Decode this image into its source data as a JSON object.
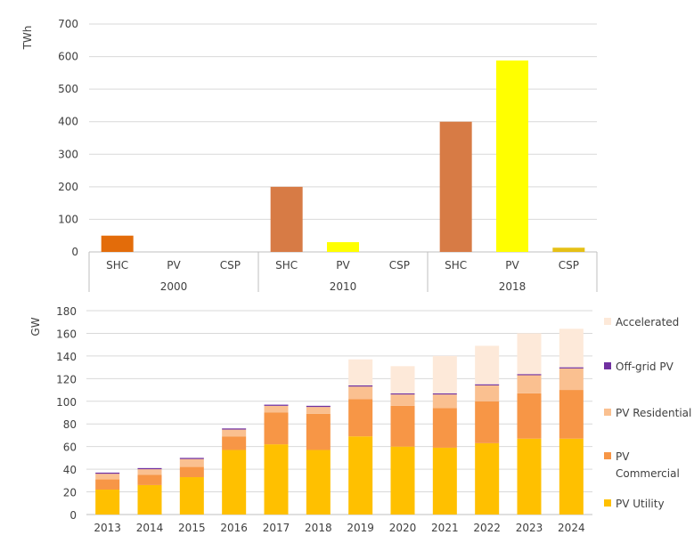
{
  "chart_data": [
    {
      "type": "bar",
      "title": "",
      "ylabel": "TWh",
      "xlabel": "",
      "ylim": [
        0,
        700
      ],
      "yticks": [
        0,
        100,
        200,
        300,
        400,
        500,
        600,
        700
      ],
      "grid": true,
      "groups": [
        {
          "label": "2000",
          "bars": [
            {
              "label": "SHC",
              "value": 50,
              "color": "#e36c0a"
            },
            {
              "label": "PV",
              "value": 0,
              "color": "#ffff00"
            },
            {
              "label": "CSP",
              "value": 0,
              "color": "#e5c016"
            }
          ]
        },
        {
          "label": "2010",
          "bars": [
            {
              "label": "SHC",
              "value": 200,
              "color": "#d77b45"
            },
            {
              "label": "PV",
              "value": 30,
              "color": "#ffff00"
            },
            {
              "label": "CSP",
              "value": 0,
              "color": "#e5c016"
            }
          ]
        },
        {
          "label": "2018",
          "bars": [
            {
              "label": "SHC",
              "value": 400,
              "color": "#d77b45"
            },
            {
              "label": "PV",
              "value": 588,
              "color": "#ffff00"
            },
            {
              "label": "CSP",
              "value": 13,
              "color": "#e5c016"
            }
          ]
        }
      ]
    },
    {
      "type": "stacked-bar",
      "title": "",
      "ylabel": "GW",
      "xlabel": "",
      "ylim": [
        0,
        180
      ],
      "yticks": [
        0,
        20,
        40,
        60,
        80,
        100,
        120,
        140,
        160,
        180
      ],
      "grid": true,
      "categories": [
        "2013",
        "2014",
        "2015",
        "2016",
        "2017",
        "2018",
        "2019",
        "2020",
        "2021",
        "2022",
        "2023",
        "2024"
      ],
      "series": [
        {
          "name": "PV Utility",
          "color": "#ffc000",
          "values": [
            22,
            26,
            33,
            57,
            62,
            57,
            69,
            60,
            59,
            63,
            67,
            67
          ]
        },
        {
          "name": "PV Commercial",
          "color": "#f79646",
          "values": [
            9,
            9,
            9,
            12,
            28,
            32,
            33,
            36,
            35,
            37,
            40,
            43
          ]
        },
        {
          "name": "PV Residential",
          "color": "#fac090",
          "values": [
            5,
            5,
            7,
            6,
            6,
            6,
            11,
            10,
            12,
            14,
            16,
            19
          ]
        },
        {
          "name": "Off-grid PV",
          "color": "#7030a0",
          "values": [
            1,
            1,
            1,
            1,
            1,
            1,
            1,
            1,
            1,
            1,
            1,
            1
          ]
        },
        {
          "name": "Accelerated",
          "color": "#fde9d9",
          "values": [
            0,
            0,
            0,
            0,
            0,
            0,
            23,
            24,
            33,
            34,
            36,
            34
          ]
        }
      ],
      "legend": {
        "position": "right",
        "order": [
          "Accelerated",
          "Off-grid PV",
          "PV Residential",
          "PV Commercial",
          "PV Utility"
        ]
      }
    }
  ]
}
